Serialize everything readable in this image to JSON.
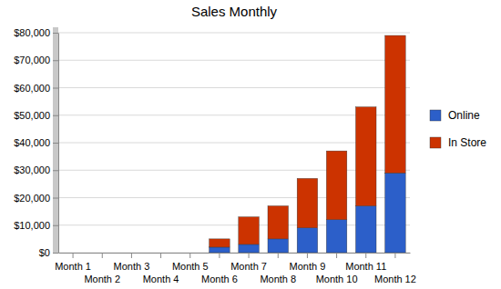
{
  "chart_data": {
    "type": "bar",
    "title": "Sales Monthly",
    "categories": [
      "Month 1",
      "Month 2",
      "Month 3",
      "Month 4",
      "Month 5",
      "Month 6",
      "Month 7",
      "Month 8",
      "Month 9",
      "Month 10",
      "Month 11",
      "Month 12"
    ],
    "series": [
      {
        "name": "Online",
        "color": "#2c5fc9",
        "values": [
          0,
          0,
          0,
          0,
          0,
          2000,
          3000,
          5000,
          9000,
          12000,
          17000,
          29000
        ]
      },
      {
        "name": "In Store",
        "color": "#cc3300",
        "values": [
          0,
          0,
          0,
          0,
          0,
          3000,
          10000,
          12000,
          18000,
          25000,
          36000,
          50000
        ]
      }
    ],
    "stacked": true,
    "ylim": [
      0,
      80000
    ],
    "yticks": [
      {
        "value": 0,
        "label": "$0"
      },
      {
        "value": 10000,
        "label": "$10,000"
      },
      {
        "value": 20000,
        "label": "$20,000"
      },
      {
        "value": 30000,
        "label": "$30,000"
      },
      {
        "value": 40000,
        "label": "$40,000"
      },
      {
        "value": 50000,
        "label": "$50,000"
      },
      {
        "value": 60000,
        "label": "$60,000"
      },
      {
        "value": 70000,
        "label": "$70,000"
      },
      {
        "value": 80000,
        "label": "$80,000"
      }
    ],
    "grid": true,
    "legend": "right"
  }
}
